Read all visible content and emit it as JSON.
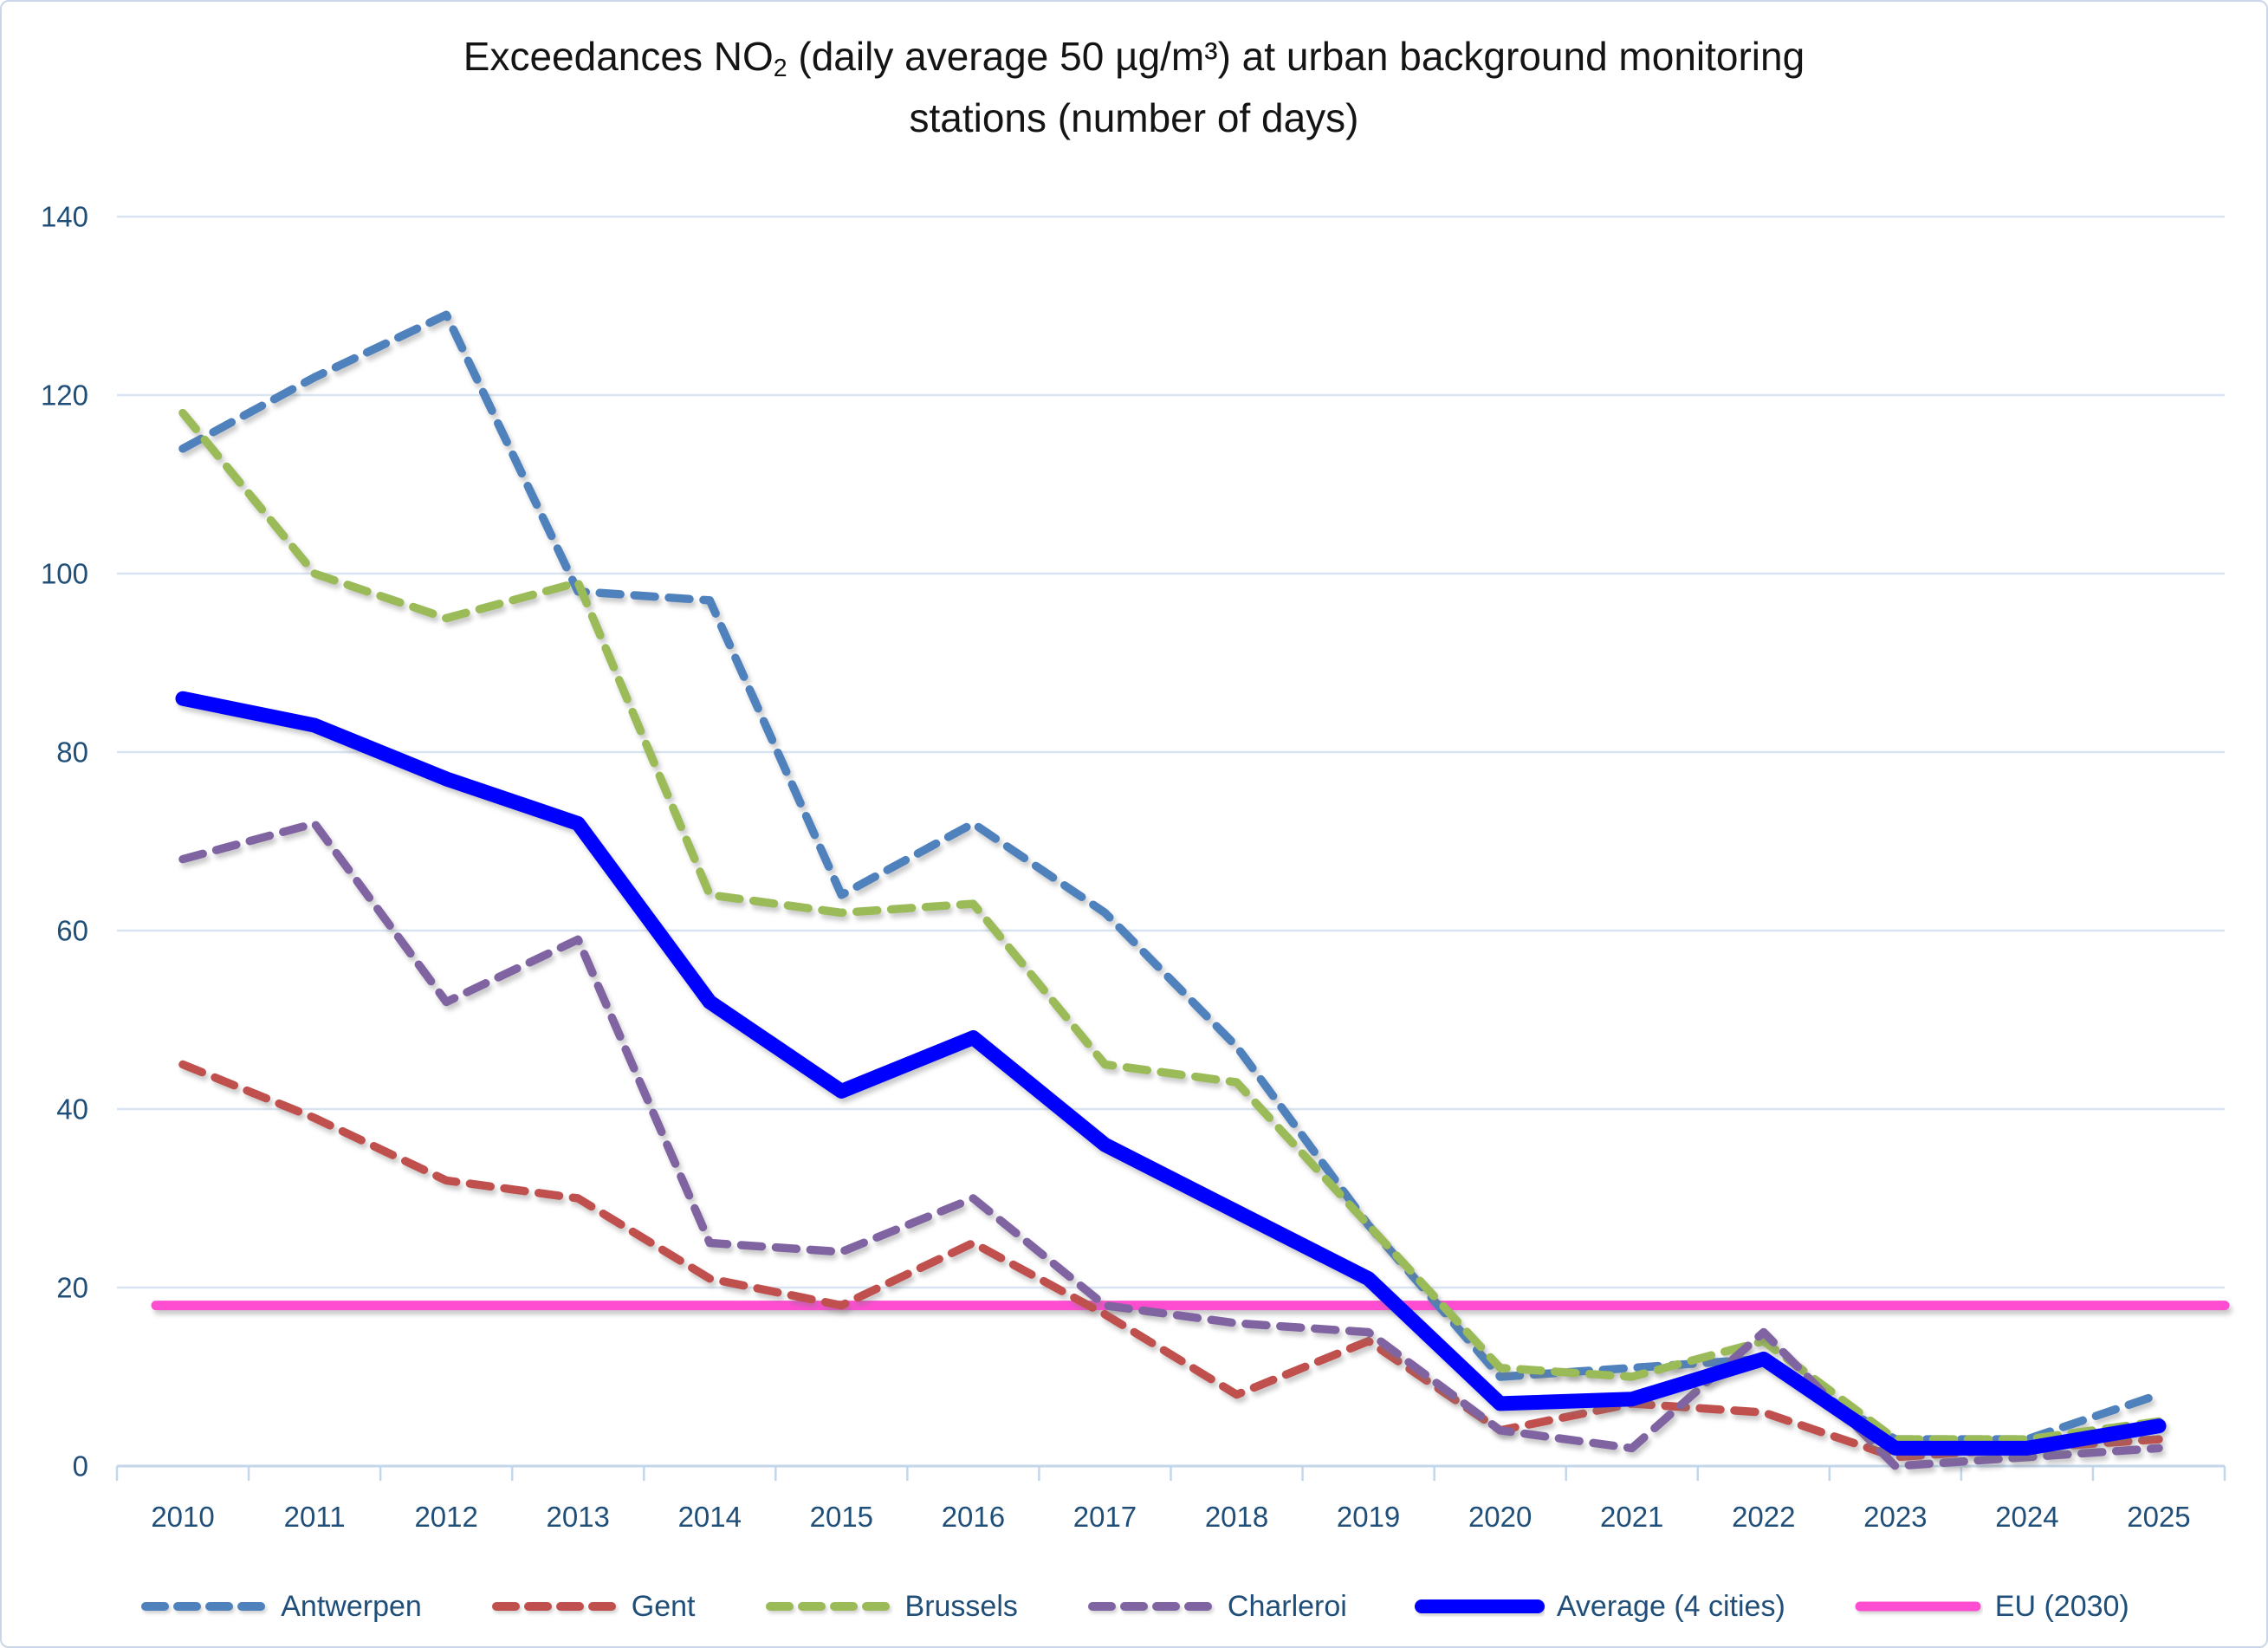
{
  "chart_data": {
    "type": "line",
    "title": "Exceedances NO2 (daily average 50 µg/m³) at urban background monitoring stations (number of days)",
    "title_parts": {
      "line1_pre": "Exceedances NO",
      "line1_sub": "2",
      "line1_post": " (daily average 50 µg/m³) at urban background monitoring",
      "line2": "stations (number of days)"
    },
    "xlabel": "",
    "ylabel": "",
    "ylim": [
      0,
      140
    ],
    "yticks": [
      0,
      20,
      40,
      60,
      80,
      100,
      120,
      140
    ],
    "grid": true,
    "legend_position": "bottom",
    "categories": [
      "2010",
      "2011",
      "2012",
      "2013",
      "2014",
      "2015",
      "2016",
      "2017",
      "2018",
      "2019",
      "2020",
      "2021",
      "2022",
      "2023",
      "2024",
      "2025"
    ],
    "series": [
      {
        "name": "Antwerpen",
        "color": "#4f81bd",
        "style": "dashed",
        "values": [
          114,
          122,
          129,
          98,
          97,
          64,
          72,
          62,
          47,
          27,
          10,
          11,
          12,
          3,
          3,
          8
        ]
      },
      {
        "name": "Gent",
        "color": "#c0504d",
        "style": "dashed",
        "values": [
          45,
          39,
          32,
          30,
          21,
          18,
          25,
          17,
          8,
          14,
          4,
          7,
          6,
          1,
          2,
          3
        ]
      },
      {
        "name": "Brussels",
        "color": "#9bbb59",
        "style": "dashed",
        "values": [
          118,
          100,
          95,
          99,
          64,
          62,
          63,
          45,
          43,
          27,
          11,
          10,
          14,
          3,
          3,
          5
        ]
      },
      {
        "name": "Charleroi",
        "color": "#8064a2",
        "style": "dashed",
        "values": [
          68,
          72,
          52,
          59,
          25,
          24,
          30,
          18,
          16,
          15,
          4,
          2,
          15,
          0,
          1,
          2
        ]
      },
      {
        "name": "Average (4 cities)",
        "color": "#0000ff",
        "style": "solid-thick",
        "values": [
          86,
          83,
          77,
          72,
          52,
          42,
          48,
          36,
          28.5,
          21,
          7,
          7.5,
          12,
          2,
          2,
          4.5
        ]
      },
      {
        "name": "EU (2030)",
        "color": "#ff4dd2",
        "style": "solid",
        "values": [
          18,
          18,
          18,
          18,
          18,
          18,
          18,
          18,
          18,
          18,
          18,
          18,
          18,
          18,
          18,
          18
        ]
      }
    ]
  },
  "style": {
    "grid_color": "#d8e4f2",
    "axis_color": "#c3d6ea",
    "label_color": "#1f4e79",
    "title_color": "#141414",
    "border_color": "#c9d7e8",
    "background": "#ffffff"
  }
}
